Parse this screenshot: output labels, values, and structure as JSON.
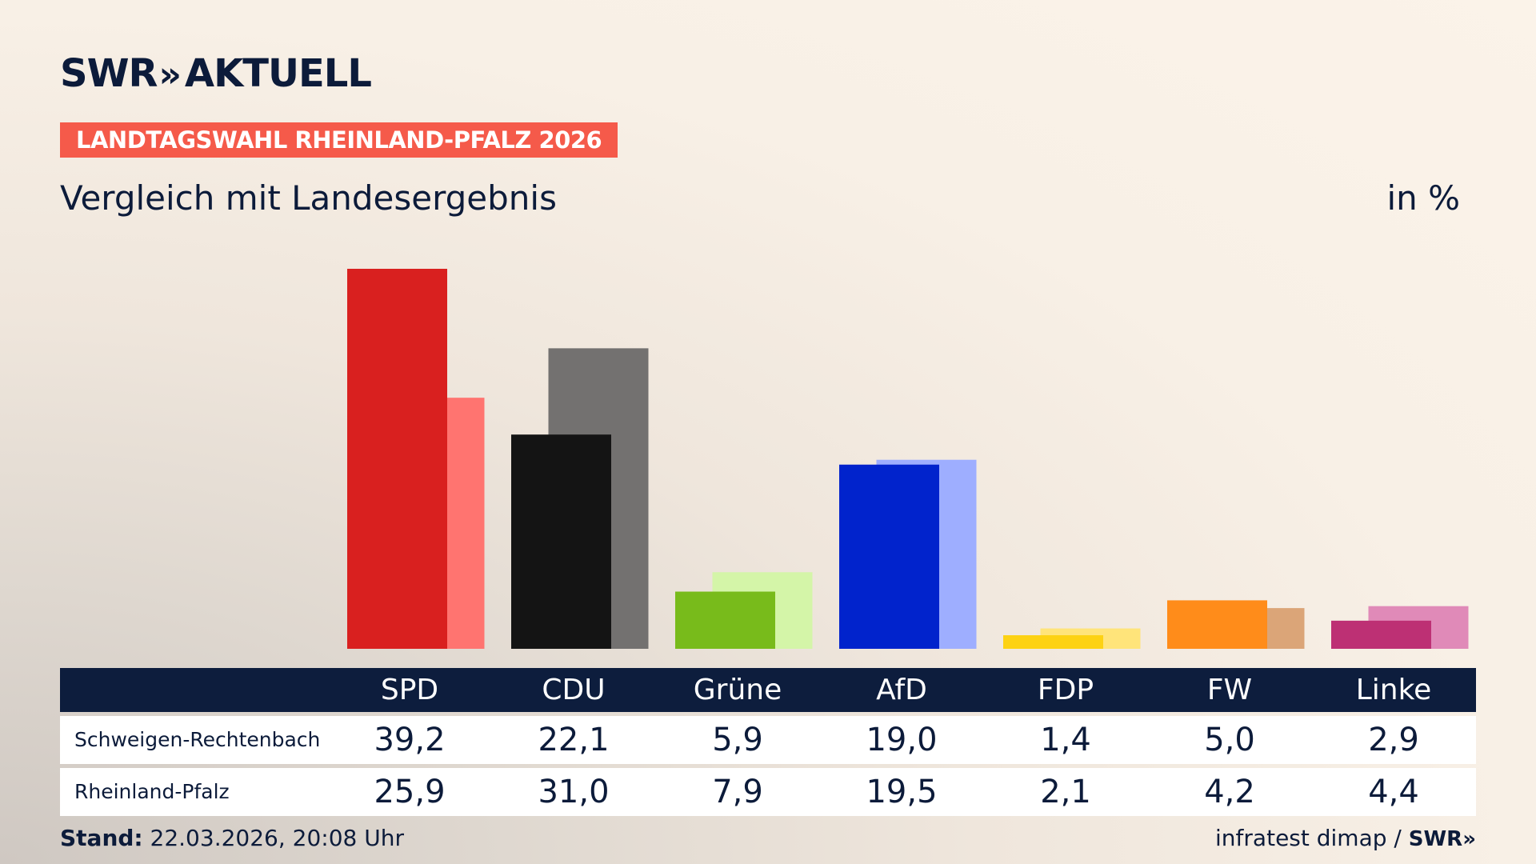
{
  "header": {
    "brand": "SWR",
    "brand_chevrons": "»",
    "brand_suffix": "AKTUELL",
    "badge": "LANDTAGSWAHL RHEINLAND-PFALZ 2026",
    "subtitle": "Vergleich mit Landesergebnis",
    "unit": "in %"
  },
  "chart_data": {
    "type": "bar",
    "title": "Vergleich mit Landesergebnis",
    "unit": "in %",
    "categories": [
      "SPD",
      "CDU",
      "Grüne",
      "AfD",
      "FDP",
      "FW",
      "Linke"
    ],
    "series": [
      {
        "name": "Schweigen-Rechtenbach",
        "values": [
          39.2,
          22.1,
          5.9,
          19.0,
          1.4,
          5.0,
          2.9
        ],
        "labels": [
          "39,2",
          "22,1",
          "5,9",
          "19,0",
          "1,4",
          "5,0",
          "2,9"
        ],
        "colors": [
          "#d9201f",
          "#141414",
          "#78bb1b",
          "#0123cc",
          "#fdd213",
          "#ff8c1a",
          "#bd3074"
        ]
      },
      {
        "name": "Rheinland-Pfalz",
        "values": [
          25.9,
          31.0,
          7.9,
          19.5,
          2.1,
          4.2,
          4.4
        ],
        "labels": [
          "25,9",
          "31,0",
          "7,9",
          "19,5",
          "2,1",
          "4,2",
          "4,4"
        ],
        "colors": [
          "#ff7470",
          "#737170",
          "#d4f5a8",
          "#9eaeff",
          "#ffe47a",
          "#dba578",
          "#e08ab8"
        ]
      }
    ],
    "ylim": [
      0,
      39.2
    ]
  },
  "table": {
    "rows": [
      {
        "label": "Schweigen-Rechtenbach"
      },
      {
        "label": "Rheinland-Pfalz"
      }
    ]
  },
  "footer": {
    "stand_label": "Stand:",
    "stand_value": "22.03.2026, 20:08 Uhr",
    "source": "infratest dimap /",
    "source_brand": "SWR»"
  }
}
